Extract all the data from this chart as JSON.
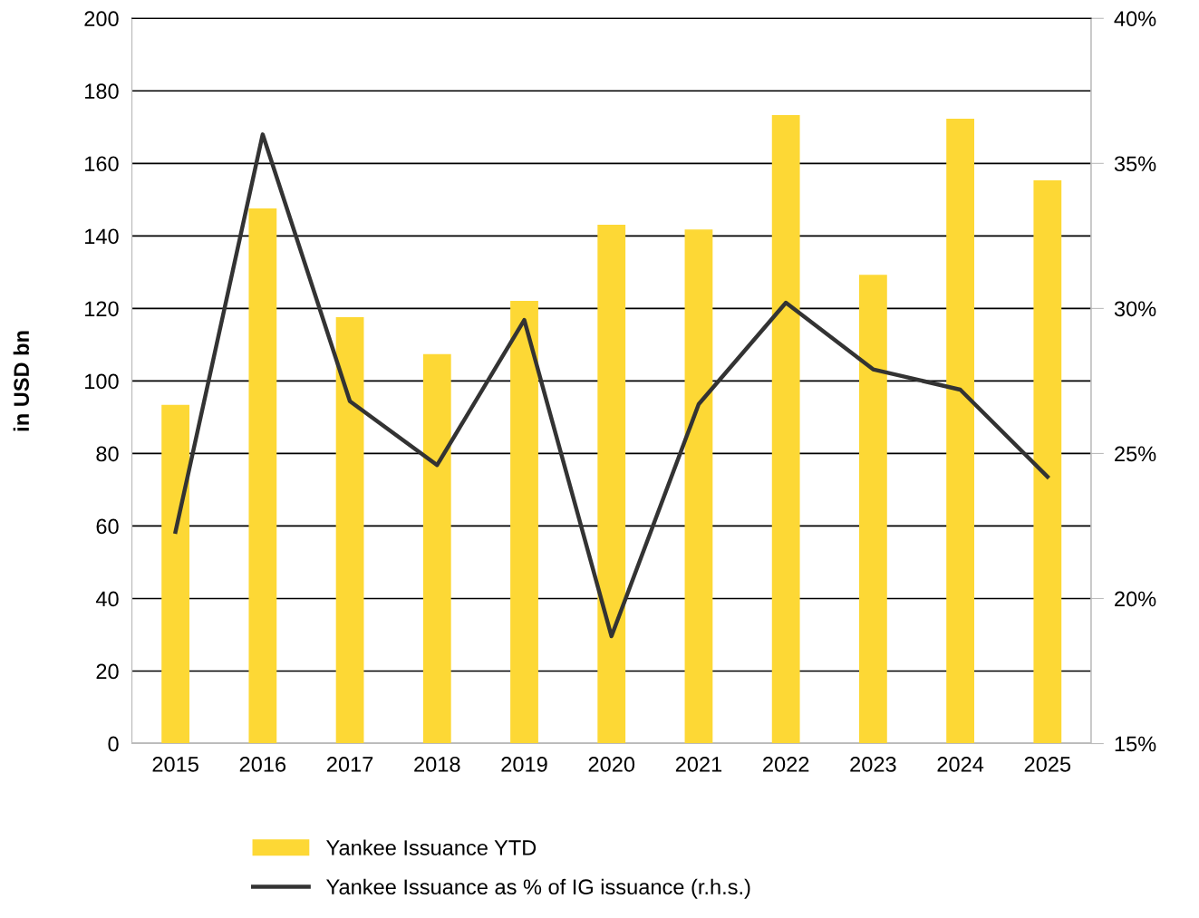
{
  "chart_data": {
    "type": "bar",
    "ylabel": "in USD bn",
    "categories": [
      "2015",
      "2016",
      "2017",
      "2018",
      "2019",
      "2020",
      "2021",
      "2022",
      "2023",
      "2024",
      "2025"
    ],
    "series": [
      {
        "name": "Yankee Issuance YTD",
        "color": "#fdd835",
        "values": [
          93.4,
          147.6,
          117.6,
          107.4,
          122.1,
          143.1,
          141.8,
          173.3,
          129.3,
          172.3,
          155.3
        ]
      },
      {
        "name": "Yankee Issuance as % of IG issuance (r.h.s.)",
        "type": "line",
        "axis": "y2",
        "color": "#333333",
        "values": [
          22.3,
          36.0,
          26.8,
          24.6,
          29.6,
          18.7,
          26.7,
          30.2,
          27.9,
          27.2,
          24.2
        ]
      }
    ],
    "ylim": [
      0,
      200
    ],
    "yticks": [
      0,
      20,
      40,
      60,
      80,
      100,
      120,
      140,
      160,
      180,
      200
    ],
    "y2lim": [
      15,
      40
    ],
    "y2ticks": [
      {
        "value": 15,
        "label": "15%"
      },
      {
        "value": 20,
        "label": "20%"
      },
      {
        "value": 25,
        "label": "25%"
      },
      {
        "value": 30,
        "label": "30%"
      },
      {
        "value": 35,
        "label": "35%"
      },
      {
        "value": 40,
        "label": "40%"
      }
    ],
    "grid": "y",
    "legend": "bottom",
    "marker": "none",
    "line_style": "solid"
  }
}
